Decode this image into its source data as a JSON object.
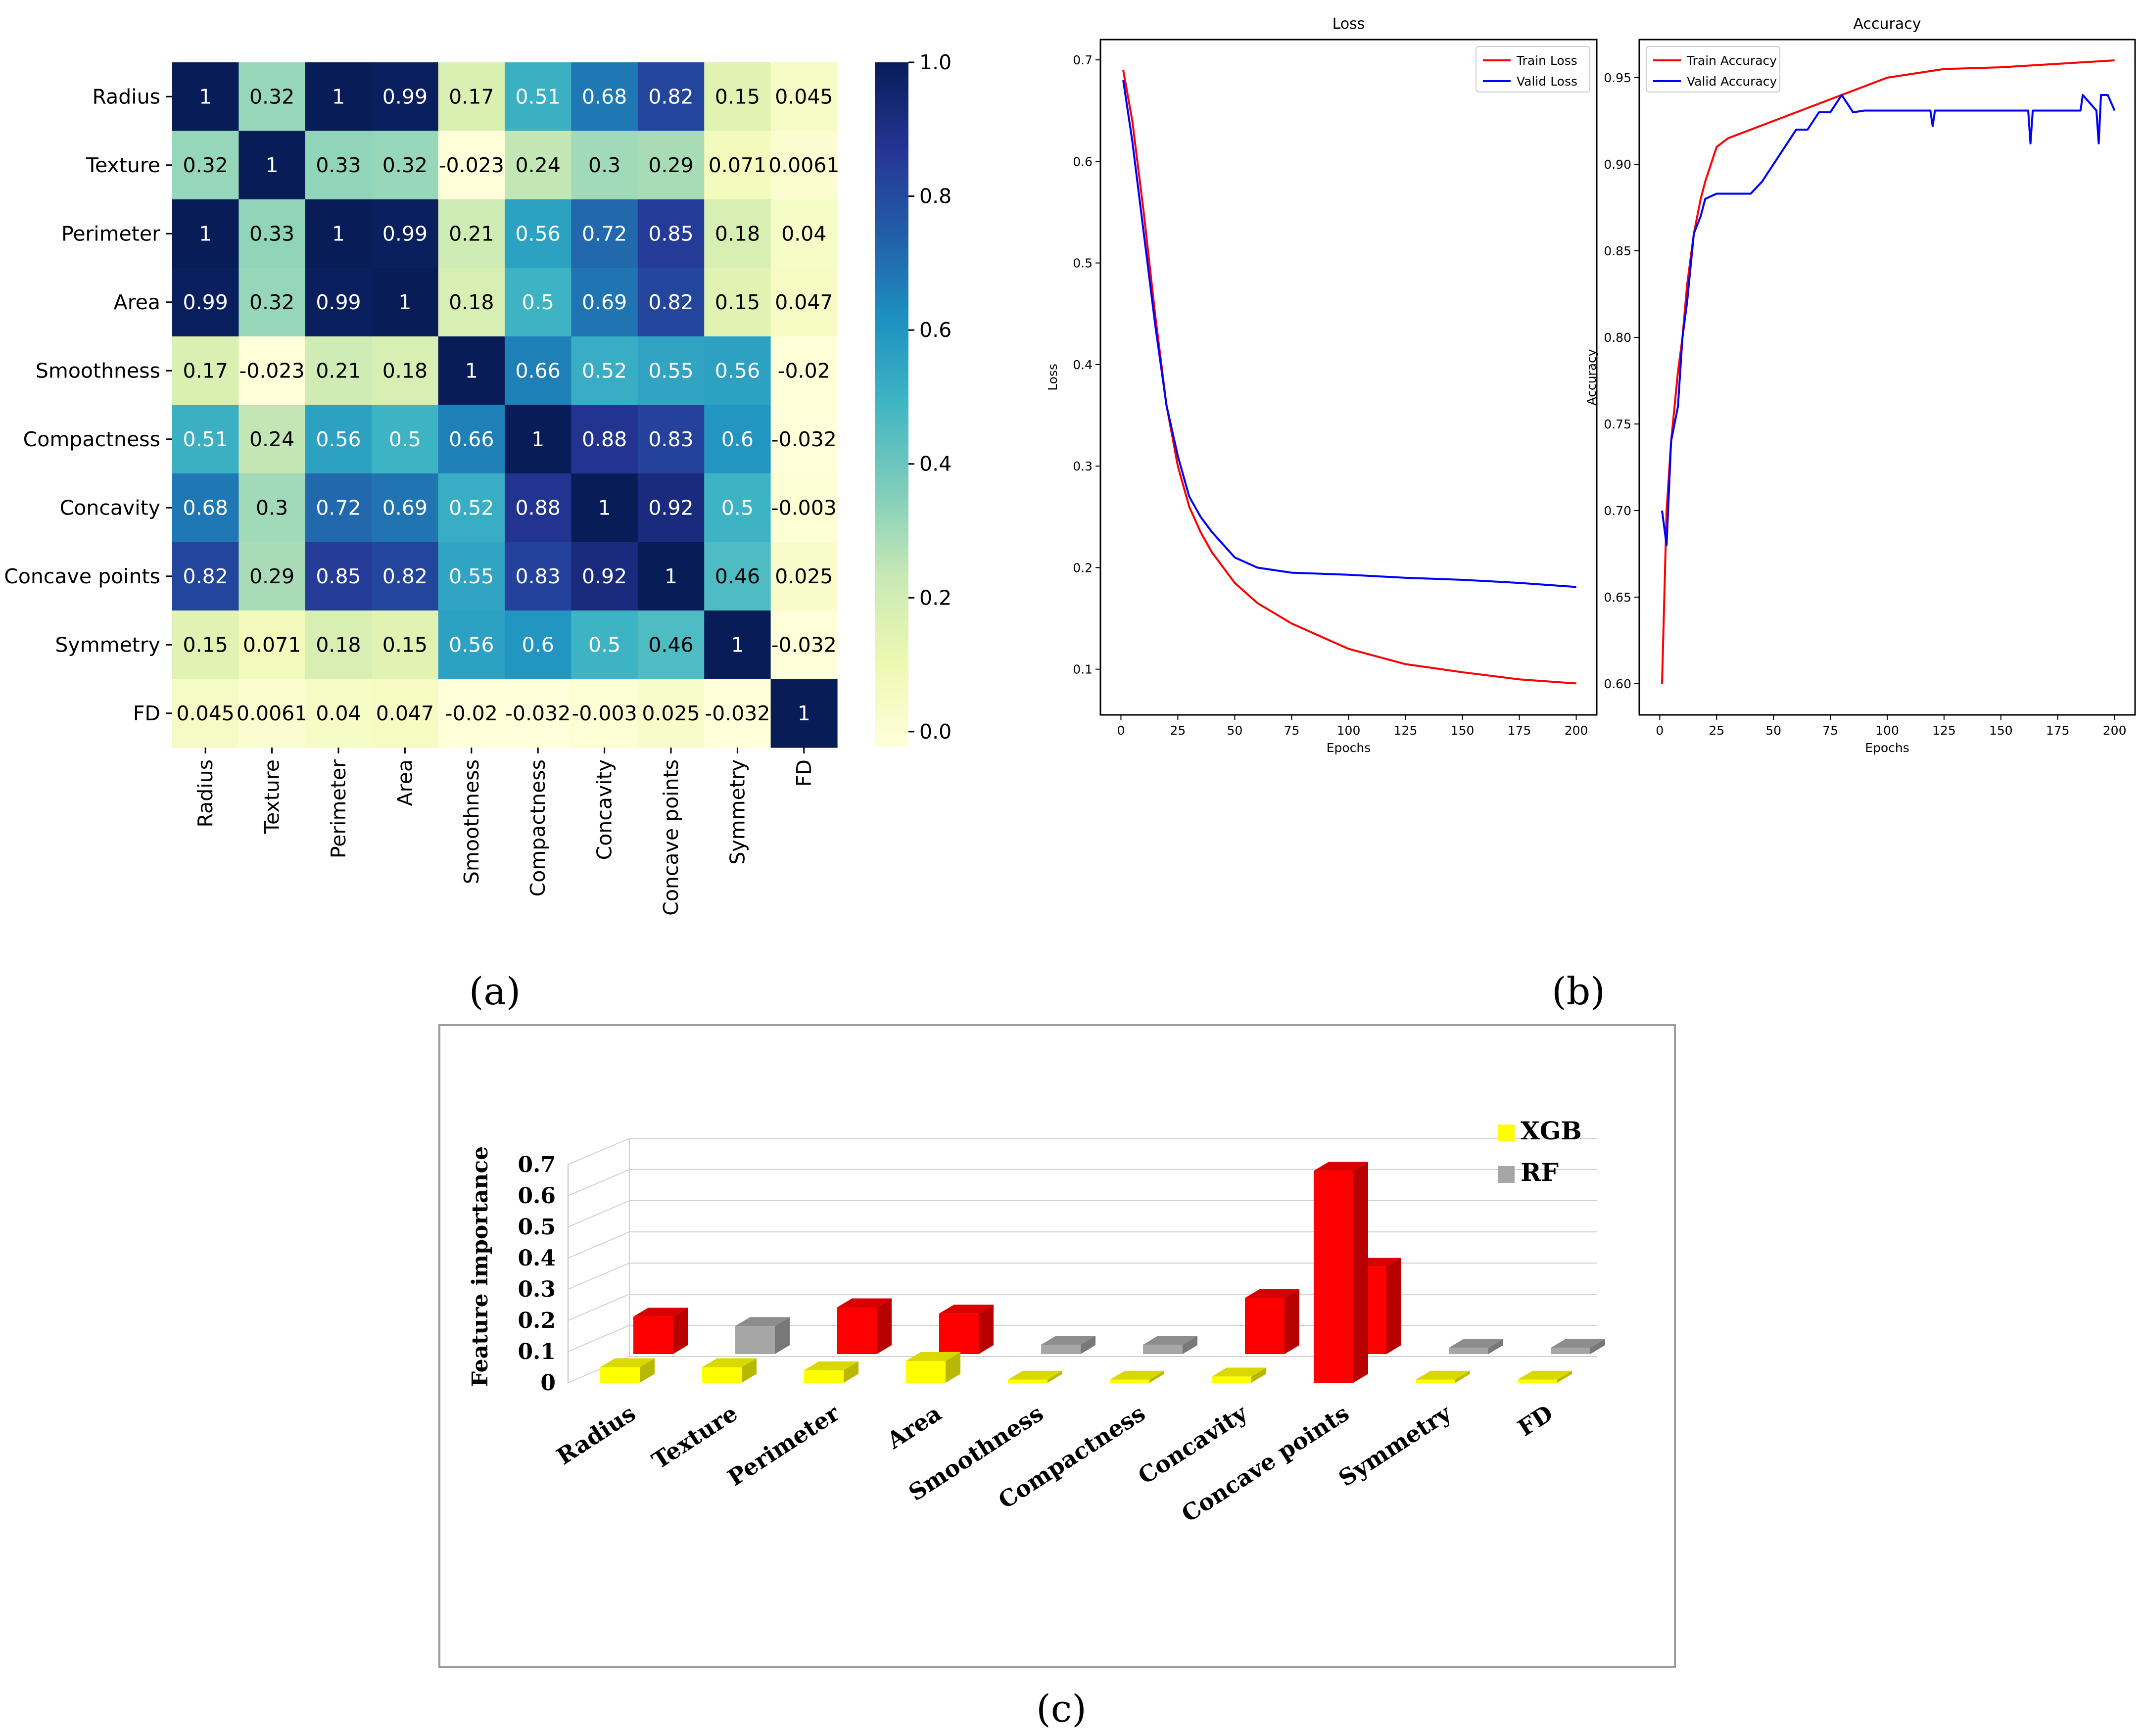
{
  "panels": {
    "a": "(a)",
    "b": "(b)",
    "c": "(c)"
  },
  "chart_data": [
    {
      "type": "heatmap",
      "title": "",
      "labels": [
        "Radius",
        "Texture",
        "Perimeter",
        "Area",
        "Smoothness",
        "Compactness",
        "Concavity",
        "Concave points",
        "Symmetry",
        "FD"
      ],
      "values": [
        [
          1,
          0.32,
          1,
          0.99,
          0.17,
          0.51,
          0.68,
          0.82,
          0.15,
          0.045
        ],
        [
          0.32,
          1,
          0.33,
          0.32,
          -0.023,
          0.24,
          0.3,
          0.29,
          0.071,
          0.0061
        ],
        [
          1,
          0.33,
          1,
          0.99,
          0.21,
          0.56,
          0.72,
          0.85,
          0.18,
          0.04
        ],
        [
          0.99,
          0.32,
          0.99,
          1,
          0.18,
          0.5,
          0.69,
          0.82,
          0.15,
          0.047
        ],
        [
          0.17,
          -0.023,
          0.21,
          0.18,
          1,
          0.66,
          0.52,
          0.55,
          0.56,
          -0.02
        ],
        [
          0.51,
          0.24,
          0.56,
          0.5,
          0.66,
          1,
          0.88,
          0.83,
          0.6,
          -0.032
        ],
        [
          0.68,
          0.3,
          0.72,
          0.69,
          0.52,
          0.88,
          1,
          0.92,
          0.5,
          -0.003
        ],
        [
          0.82,
          0.29,
          0.85,
          0.82,
          0.55,
          0.83,
          0.92,
          1,
          0.46,
          0.025
        ],
        [
          0.15,
          0.071,
          0.18,
          0.15,
          0.56,
          0.6,
          0.5,
          0.46,
          1,
          -0.032
        ],
        [
          0.045,
          0.0061,
          0.04,
          0.047,
          -0.02,
          -0.032,
          -0.003,
          0.025,
          -0.032,
          1
        ]
      ],
      "cell_labels": [
        [
          "1",
          "0.32",
          "1",
          "0.99",
          "0.17",
          "0.51",
          "0.68",
          "0.82",
          "0.15",
          "0.045"
        ],
        [
          "0.32",
          "1",
          "0.33",
          "0.32",
          "-0.023",
          "0.24",
          "0.3",
          "0.29",
          "0.071",
          "0.0061"
        ],
        [
          "1",
          "0.33",
          "1",
          "0.99",
          "0.21",
          "0.56",
          "0.72",
          "0.85",
          "0.18",
          "0.04"
        ],
        [
          "0.99",
          "0.32",
          "0.99",
          "1",
          "0.18",
          "0.5",
          "0.69",
          "0.82",
          "0.15",
          "0.047"
        ],
        [
          "0.17",
          "-0.023",
          "0.21",
          "0.18",
          "1",
          "0.66",
          "0.52",
          "0.55",
          "0.56",
          "-0.02"
        ],
        [
          "0.51",
          "0.24",
          "0.56",
          "0.5",
          "0.66",
          "1",
          "0.88",
          "0.83",
          "0.6",
          "-0.032"
        ],
        [
          "0.68",
          "0.3",
          "0.72",
          "0.69",
          "0.52",
          "0.88",
          "1",
          "0.92",
          "0.5",
          "-0.003"
        ],
        [
          "0.82",
          "0.29",
          "0.85",
          "0.82",
          "0.55",
          "0.83",
          "0.92",
          "1",
          "0.46",
          "0.025"
        ],
        [
          "0.15",
          "0.071",
          "0.18",
          "0.15",
          "0.56",
          "0.6",
          "0.5",
          "0.46",
          "1",
          "-0.032"
        ],
        [
          "0.045",
          "0.0061",
          "0.04",
          "0.047",
          "-0.02",
          "-0.032",
          "-0.003",
          "0.025",
          "-0.032",
          "1"
        ]
      ],
      "colorbar": {
        "min": -0.023,
        "max": 1.0,
        "ticks": [
          "0.0",
          "0.2",
          "0.4",
          "0.6",
          "0.8",
          "1.0"
        ],
        "tick_values": [
          0,
          0.2,
          0.4,
          0.6,
          0.8,
          1.0
        ],
        "colormap": "YlGnBu"
      }
    },
    {
      "type": "line",
      "title": "Loss",
      "xlabel": "Epochs",
      "ylabel": "Loss",
      "xlim": [
        -9,
        209
      ],
      "ylim": [
        0.055,
        0.72
      ],
      "x_ticks": [
        "0",
        "25",
        "50",
        "75",
        "100",
        "125",
        "150",
        "175",
        "200"
      ],
      "x_tick_values": [
        0,
        25,
        50,
        75,
        100,
        125,
        150,
        175,
        200
      ],
      "y_ticks": [
        "0.1",
        "0.2",
        "0.3",
        "0.4",
        "0.5",
        "0.6",
        "0.7"
      ],
      "y_tick_values": [
        0.1,
        0.2,
        0.3,
        0.4,
        0.5,
        0.6,
        0.7
      ],
      "legend": "top-right",
      "series": [
        {
          "name": "Train Loss",
          "color": "#ff0000",
          "x": [
            1,
            5,
            10,
            15,
            20,
            25,
            30,
            35,
            40,
            50,
            60,
            75,
            100,
            125,
            150,
            175,
            200
          ],
          "y": [
            0.69,
            0.64,
            0.55,
            0.45,
            0.36,
            0.3,
            0.26,
            0.235,
            0.215,
            0.185,
            0.165,
            0.145,
            0.12,
            0.105,
            0.097,
            0.09,
            0.086
          ]
        },
        {
          "name": "Valid Loss",
          "color": "#0000ff",
          "x": [
            1,
            5,
            10,
            15,
            20,
            25,
            30,
            35,
            40,
            50,
            60,
            75,
            100,
            125,
            150,
            175,
            200
          ],
          "y": [
            0.68,
            0.62,
            0.53,
            0.44,
            0.36,
            0.31,
            0.27,
            0.25,
            0.235,
            0.21,
            0.2,
            0.195,
            0.193,
            0.19,
            0.188,
            0.185,
            0.181
          ]
        }
      ]
    },
    {
      "type": "line",
      "title": "Accuracy",
      "xlabel": "Epochs",
      "ylabel": "Accuracy",
      "xlim": [
        -9,
        209
      ],
      "ylim": [
        0.582,
        0.972
      ],
      "x_ticks": [
        "0",
        "25",
        "50",
        "75",
        "100",
        "125",
        "150",
        "175",
        "200"
      ],
      "x_tick_values": [
        0,
        25,
        50,
        75,
        100,
        125,
        150,
        175,
        200
      ],
      "y_ticks": [
        "0.60",
        "0.65",
        "0.70",
        "0.75",
        "0.80",
        "0.85",
        "0.90",
        "0.95"
      ],
      "y_tick_values": [
        0.6,
        0.65,
        0.7,
        0.75,
        0.8,
        0.85,
        0.9,
        0.95
      ],
      "legend": "top-left",
      "series": [
        {
          "name": "Train Accuracy",
          "color": "#ff0000",
          "x": [
            1,
            3,
            5,
            8,
            10,
            12,
            15,
            18,
            20,
            25,
            30,
            40,
            50,
            60,
            70,
            80,
            90,
            100,
            125,
            150,
            175,
            200
          ],
          "y": [
            0.6,
            0.7,
            0.74,
            0.78,
            0.8,
            0.83,
            0.86,
            0.88,
            0.89,
            0.91,
            0.915,
            0.92,
            0.925,
            0.93,
            0.935,
            0.94,
            0.945,
            0.95,
            0.955,
            0.956,
            0.958,
            0.96
          ]
        },
        {
          "name": "Valid Accuracy",
          "color": "#0000ff",
          "x": [
            1,
            3,
            5,
            8,
            10,
            12,
            15,
            18,
            20,
            25,
            30,
            40,
            45,
            50,
            55,
            60,
            65,
            70,
            75,
            80,
            85,
            90,
            100,
            119,
            120,
            121,
            150,
            162,
            163,
            164,
            185,
            186,
            192,
            193,
            194,
            197,
            200
          ],
          "y": [
            0.7,
            0.68,
            0.74,
            0.76,
            0.8,
            0.82,
            0.86,
            0.87,
            0.88,
            0.883,
            0.883,
            0.883,
            0.89,
            0.9,
            0.91,
            0.92,
            0.92,
            0.93,
            0.93,
            0.94,
            0.93,
            0.931,
            0.931,
            0.931,
            0.922,
            0.931,
            0.931,
            0.931,
            0.912,
            0.931,
            0.931,
            0.94,
            0.931,
            0.912,
            0.94,
            0.94,
            0.931
          ]
        }
      ]
    },
    {
      "type": "bar",
      "title": "",
      "ylabel": "Feature importance",
      "ylim": [
        0,
        0.7
      ],
      "y_ticks": [
        "0",
        "0.1",
        "0.2",
        "0.3",
        "0.4",
        "0.5",
        "0.6",
        "0.7"
      ],
      "y_tick_values": [
        0,
        0.1,
        0.2,
        0.3,
        0.4,
        0.5,
        0.6,
        0.7
      ],
      "categories": [
        "Radius",
        "Texture",
        "Perimeter",
        "Area",
        "Smoothness",
        "Compactness",
        "Concavity",
        "Concave points",
        "Symmetry",
        "FD"
      ],
      "legend": "top-right",
      "series": [
        {
          "name": "XGB",
          "color": "#ffff00",
          "values": [
            0.05,
            0.05,
            0.04,
            0.07,
            0.01,
            0.01,
            0.02,
            0.68,
            0.01,
            0.01
          ]
        },
        {
          "name": "RF",
          "color": "#a6a6a6",
          "values": [
            0.12,
            0.09,
            0.15,
            0.13,
            0.03,
            0.03,
            0.18,
            0.28,
            0.02,
            0.02
          ]
        }
      ],
      "highlight_color": "#ff0000"
    }
  ]
}
